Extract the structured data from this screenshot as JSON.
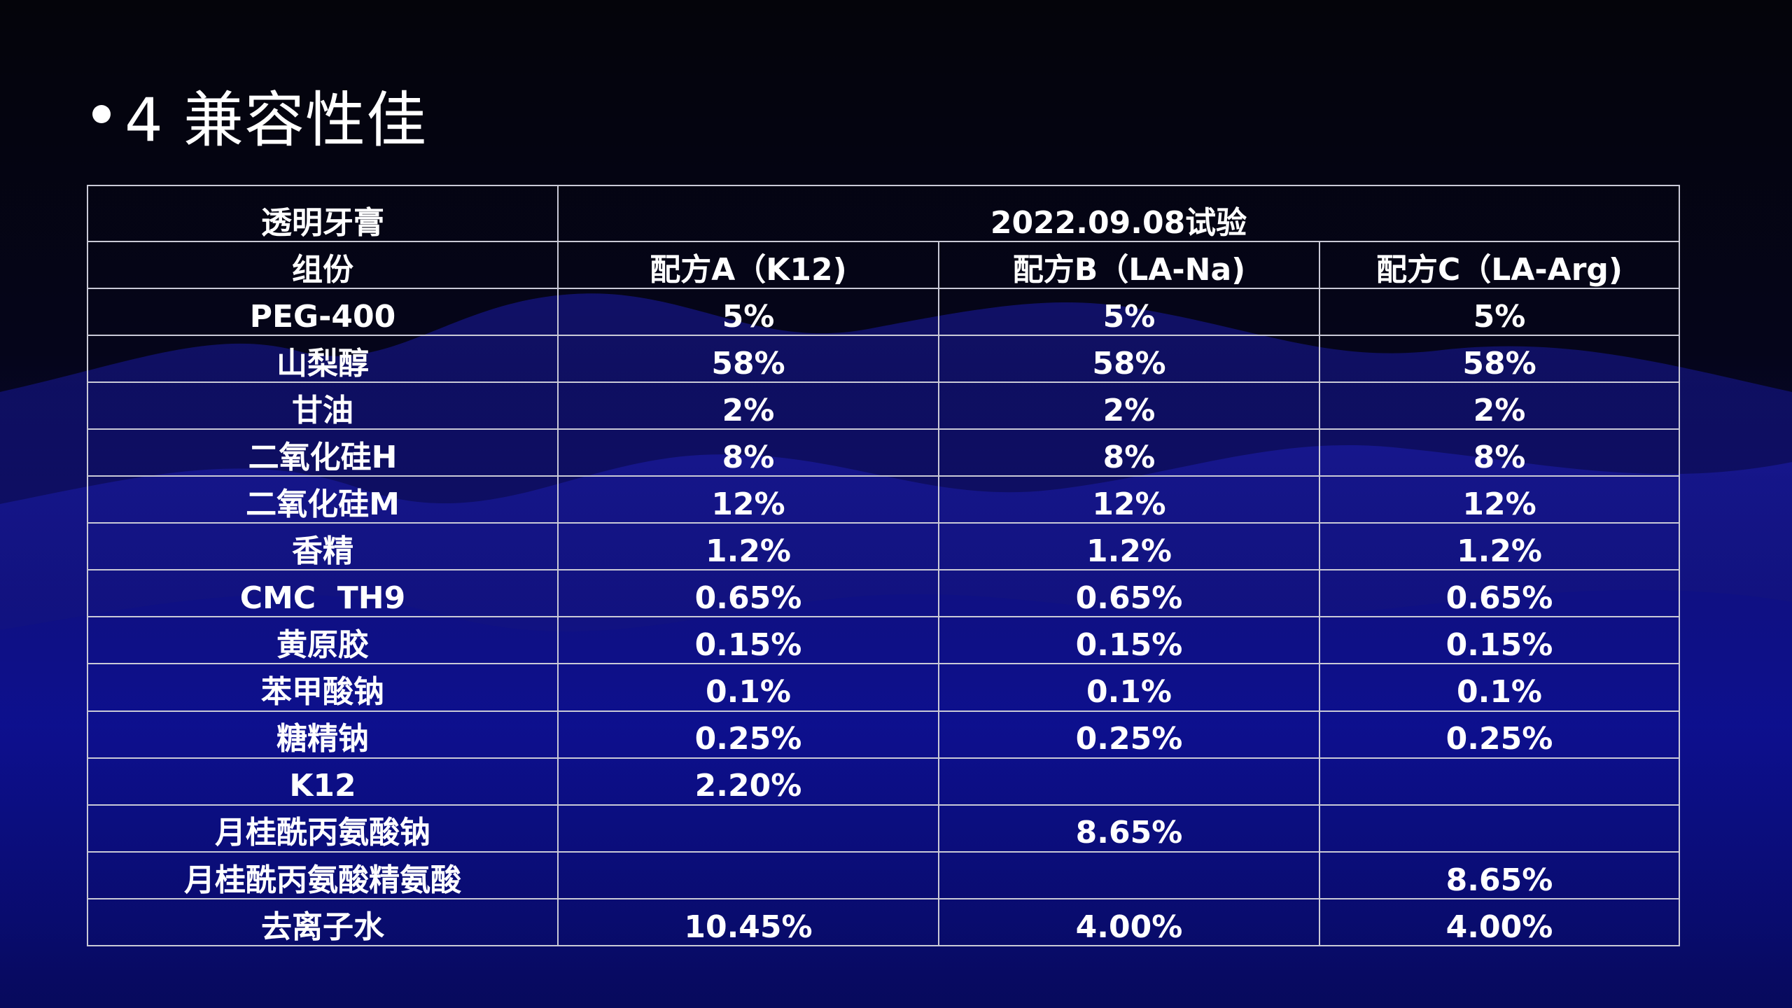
{
  "slide": {
    "title": "4 兼容性佳"
  },
  "table": {
    "corner_label": "透明牙膏",
    "trial_label": "2022.09.08试验",
    "component_header": "组份",
    "formula_headers": [
      "配方A（K12)",
      "配方B（LA-Na)",
      "配方C（LA-Arg)"
    ],
    "rows": [
      {
        "name": "PEG-400",
        "values": [
          "5%",
          "5%",
          "5%"
        ]
      },
      {
        "name": "山梨醇",
        "values": [
          "58%",
          "58%",
          "58%"
        ]
      },
      {
        "name": "甘油",
        "values": [
          "2%",
          "2%",
          "2%"
        ]
      },
      {
        "name": "二氧化硅H",
        "values": [
          "8%",
          "8%",
          "8%"
        ]
      },
      {
        "name": "二氧化硅M",
        "values": [
          "12%",
          "12%",
          "12%"
        ]
      },
      {
        "name": "香精",
        "values": [
          "1.2%",
          "1.2%",
          "1.2%"
        ]
      },
      {
        "name": "CMC  TH9",
        "values": [
          "0.65%",
          "0.65%",
          "0.65%"
        ]
      },
      {
        "name": "黄原胶",
        "values": [
          "0.15%",
          "0.15%",
          "0.15%"
        ]
      },
      {
        "name": "苯甲酸钠",
        "values": [
          "0.1%",
          "0.1%",
          "0.1%"
        ]
      },
      {
        "name": "糖精钠",
        "values": [
          "0.25%",
          "0.25%",
          "0.25%"
        ]
      },
      {
        "name": "K12",
        "values": [
          "2.20%",
          "",
          ""
        ]
      },
      {
        "name": "月桂酰丙氨酸钠",
        "values": [
          "",
          "8.65%",
          ""
        ]
      },
      {
        "name": "月桂酰丙氨酸精氨酸",
        "values": [
          "",
          "",
          "8.65%"
        ]
      },
      {
        "name": "去离子水",
        "values": [
          "10.45%",
          "4.00%",
          "4.00%"
        ]
      }
    ]
  }
}
